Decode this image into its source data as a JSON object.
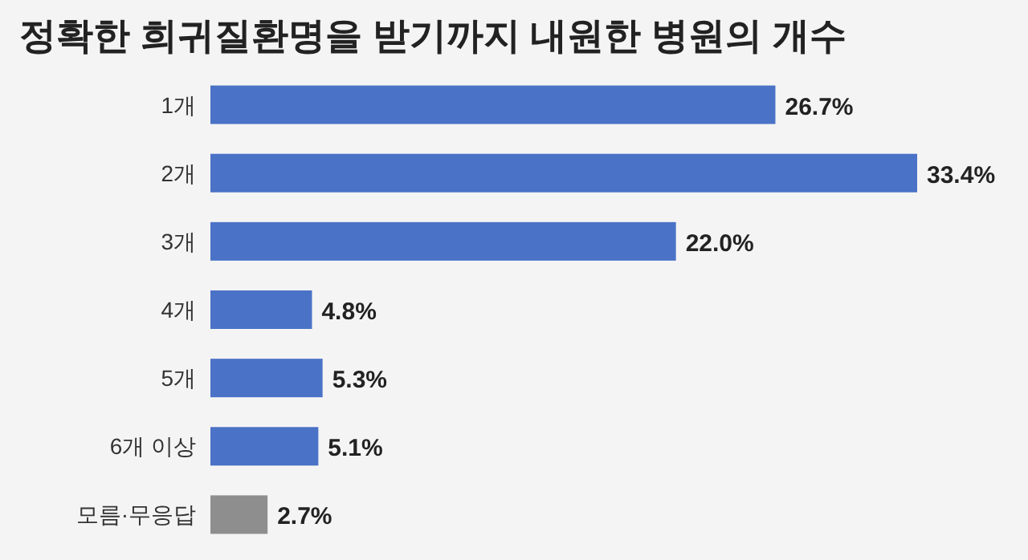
{
  "chart_data": {
    "type": "bar",
    "orientation": "horizontal",
    "title": "정확한 희귀질환명을 받기까지 내원한 병원의 개수",
    "categories": [
      "1개",
      "2개",
      "3개",
      "4개",
      "5개",
      "6개 이상",
      "모름·무응답"
    ],
    "values": [
      26.7,
      33.4,
      22.0,
      4.8,
      5.3,
      5.1,
      2.7
    ],
    "colors": [
      "#4a72c6",
      "#4a72c6",
      "#4a72c6",
      "#4a72c6",
      "#4a72c6",
      "#4a72c6",
      "#8e8e8e"
    ],
    "value_labels": [
      "26.7%",
      "33.4%",
      "22.0%",
      "4.8%",
      "5.3%",
      "5.1%",
      "2.7%"
    ]
  }
}
